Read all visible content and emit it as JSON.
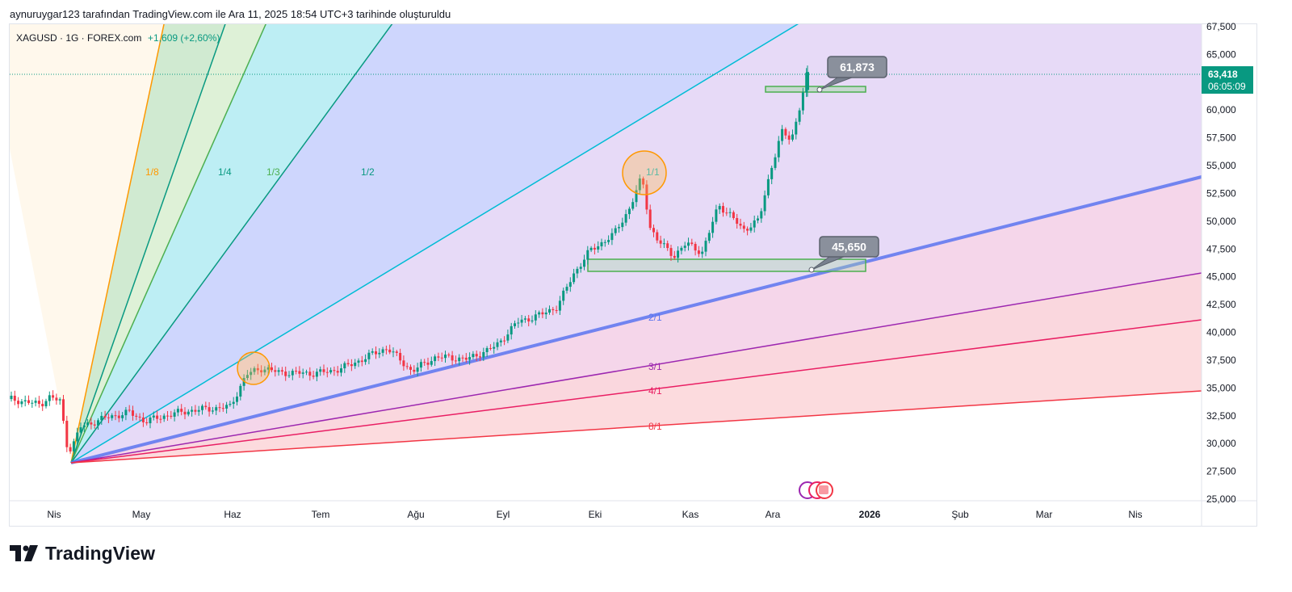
{
  "header": {
    "attribution": "aynuruygar123 tarafından TradingView.com ile Ara 11, 2025 18:54 UTC+3 tarihinde oluşturuldu"
  },
  "symbol": {
    "name": "XAGUSD · 1G · FOREX.com",
    "change": "+1,609 (+2,60%)",
    "change_color": "#089981"
  },
  "price_axis": {
    "ticks": [
      "67,500",
      "65,000",
      "60,000",
      "57,500",
      "55,000",
      "52,500",
      "50,000",
      "47,500",
      "45,000",
      "42,500",
      "40,000",
      "37,500",
      "35,000",
      "32,500",
      "30,000",
      "27,500",
      "25,000"
    ],
    "current_price": "63,418",
    "countdown": "06:05:09",
    "current_color": "#089981"
  },
  "time_axis": {
    "labels": [
      "Nis",
      "May",
      "Haz",
      "Tem",
      "Ağu",
      "Eyl",
      "Eki",
      "Kas",
      "Ara",
      "2026",
      "Şub",
      "Mar",
      "Nis"
    ]
  },
  "annotations": {
    "upper_callout": "61,873",
    "lower_callout": "45,650"
  },
  "fan_labels": {
    "f1_8": "1/8",
    "f1_4": "1/4",
    "f1_3": "1/3",
    "f1_2": "1/2",
    "f1_1": "1/1",
    "f2_1": "2/1",
    "f3_1": "3/1",
    "f4_1": "4/1",
    "f8_1": "8/1"
  },
  "colors": {
    "up": "#089981",
    "down": "#f23645",
    "fan_1_8": "#ff9800",
    "fan_1_4": "#089981",
    "fan_1_3": "#4caf50",
    "fan_1_2": "#089981",
    "fan_1_1": "#00bcd4",
    "fan_2_1": "#5b74f0",
    "fan_3_1": "#9c27b0",
    "fan_4_1": "#e91e63",
    "fan_8_1": "#f23645"
  },
  "brand": {
    "name": "TradingView"
  },
  "chart_data": {
    "type": "candlestick",
    "ylim": [
      25000,
      67500
    ],
    "x_labels": [
      "Nis",
      "May",
      "Haz",
      "Tem",
      "Ağu",
      "Eyl",
      "Eki",
      "Kas",
      "Ara",
      "2026",
      "Şub",
      "Mar",
      "Nis"
    ],
    "approx_close_path": [
      {
        "date": "Mar",
        "close": 34000
      },
      {
        "date": "Nis",
        "close": 30000
      },
      {
        "date": "May",
        "close": 32500
      },
      {
        "date": "Haz",
        "close": 36500
      },
      {
        "date": "Tem",
        "close": 36000
      },
      {
        "date": "Ağu",
        "close": 37500
      },
      {
        "date": "Eyl",
        "close": 40500
      },
      {
        "date": "Eki",
        "close": 47000
      },
      {
        "date": "Eki",
        "close": 54000
      },
      {
        "date": "Kas",
        "close": 48000
      },
      {
        "date": "Ara",
        "close": 58000
      },
      {
        "date": "Ara",
        "close": 63418
      }
    ],
    "last_price": 63418,
    "levels": [
      61873,
      45650
    ]
  }
}
